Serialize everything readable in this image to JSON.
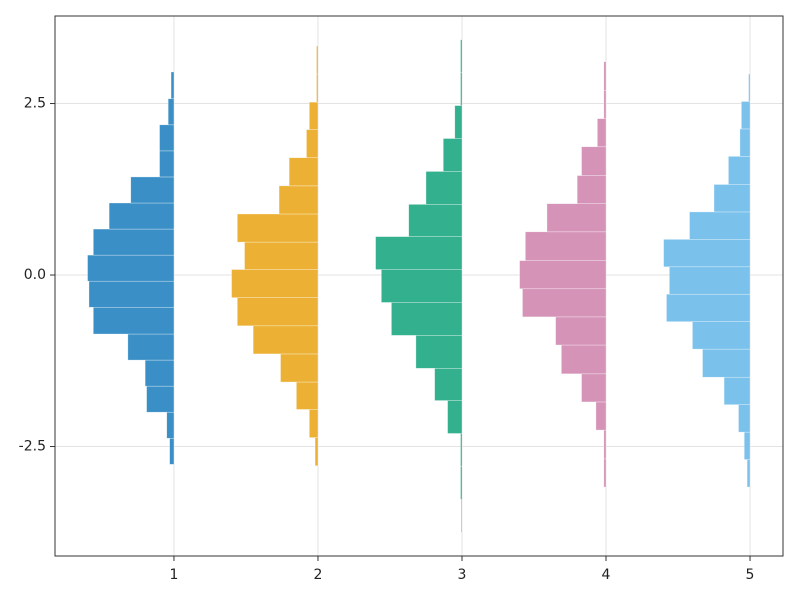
{
  "chart_data": {
    "type": "histogram",
    "orientation": "horizontal",
    "xlim": [
      0.174,
      5.229
    ],
    "ylim": [
      -4.096,
      3.776
    ],
    "xticks": [
      1,
      2,
      3,
      4,
      5
    ],
    "yticks": [
      -2.5,
      {
        "value": 0,
        "label": "0.0"
      },
      2.5
    ],
    "grid": true,
    "series": [
      {
        "x": 1,
        "color": "#3a8fc6",
        "bins": [
          -2.76,
          -2.38,
          -2.0,
          -1.62,
          -1.24,
          -0.86,
          -0.47,
          -0.09,
          0.29,
          0.67,
          1.05,
          1.43,
          1.81,
          2.19,
          2.57,
          2.96
        ],
        "values": [
          0.03,
          0.05,
          0.19,
          0.2,
          0.32,
          0.56,
          0.59,
          0.6,
          0.56,
          0.45,
          0.3,
          0.1,
          0.1,
          0.04,
          0.02
        ]
      },
      {
        "x": 2,
        "color": "#ecb134",
        "bins": [
          -2.78,
          -2.37,
          -1.96,
          -1.56,
          -1.15,
          -0.74,
          -0.33,
          0.08,
          0.48,
          0.89,
          1.3,
          1.71,
          2.12,
          2.52,
          2.93,
          3.34
        ],
        "values": [
          0.02,
          0.06,
          0.15,
          0.26,
          0.45,
          0.56,
          0.6,
          0.51,
          0.56,
          0.27,
          0.2,
          0.08,
          0.06,
          0.01,
          0.01
        ]
      },
      {
        "x": 3,
        "color": "#33b08e",
        "bins": [
          -3.75,
          -3.27,
          -2.79,
          -2.31,
          -1.83,
          -1.36,
          -0.88,
          -0.4,
          0.08,
          0.56,
          1.03,
          1.51,
          1.99,
          2.47,
          2.95,
          3.43
        ],
        "values": [
          0.005,
          0.01,
          0.01,
          0.1,
          0.19,
          0.32,
          0.49,
          0.56,
          0.6,
          0.37,
          0.25,
          0.13,
          0.05,
          0.01,
          0.01
        ]
      },
      {
        "x": 4,
        "color": "#d593b8",
        "bins": [
          -3.09,
          -2.68,
          -2.26,
          -1.85,
          -1.44,
          -1.02,
          -0.61,
          -0.2,
          0.21,
          0.63,
          1.04,
          1.45,
          1.87,
          2.28,
          2.69,
          3.11
        ],
        "values": [
          0.015,
          0.015,
          0.07,
          0.17,
          0.31,
          0.35,
          0.58,
          0.6,
          0.56,
          0.41,
          0.2,
          0.17,
          0.06,
          0.015,
          0.015
        ]
      },
      {
        "x": 5,
        "color": "#7ac1ec",
        "bins": [
          -3.09,
          -2.69,
          -2.29,
          -1.89,
          -1.49,
          -1.08,
          -0.68,
          -0.28,
          0.12,
          0.52,
          0.92,
          1.32,
          1.73,
          2.13,
          2.53,
          2.93
        ],
        "values": [
          0.02,
          0.04,
          0.08,
          0.18,
          0.33,
          0.4,
          0.58,
          0.56,
          0.6,
          0.42,
          0.25,
          0.15,
          0.07,
          0.06,
          0.01
        ]
      }
    ]
  }
}
